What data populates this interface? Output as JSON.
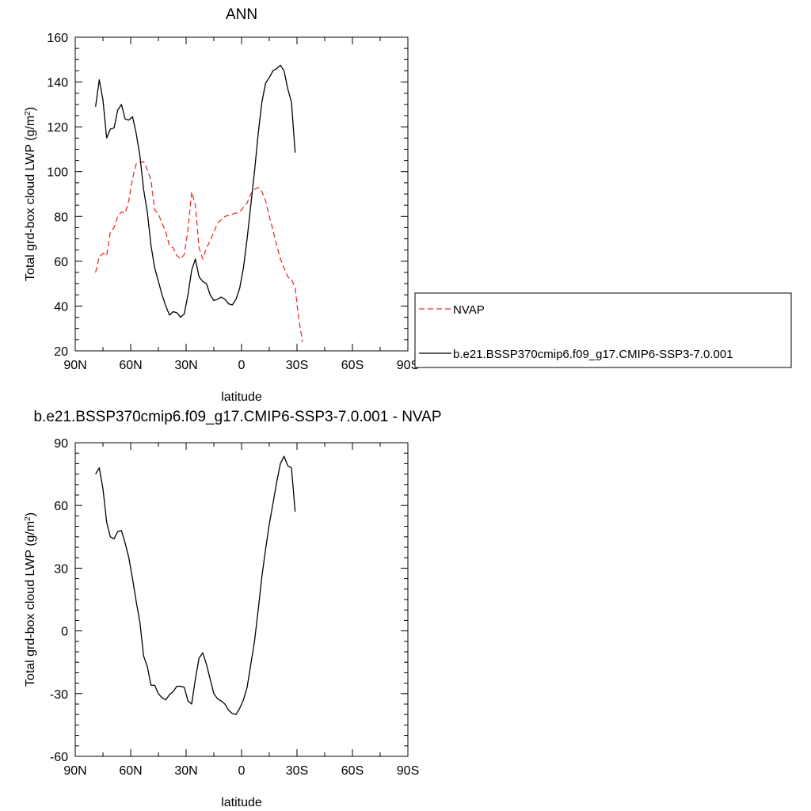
{
  "chart_data": [
    {
      "type": "line",
      "title": "ANN",
      "xlabel": "latitude",
      "ylabel": "Total grd-box cloud LWP (g/m",
      "ylabel_sup": "2",
      "ylabel_close": ")",
      "xlim": [
        90,
        -90
      ],
      "ylim": [
        20,
        160
      ],
      "xticks": [
        {
          "v": 90,
          "label": "90N"
        },
        {
          "v": 60,
          "label": "60N"
        },
        {
          "v": 30,
          "label": "30N"
        },
        {
          "v": 0,
          "label": "0"
        },
        {
          "v": -30,
          "label": "30S"
        },
        {
          "v": -60,
          "label": "60S"
        },
        {
          "v": -90,
          "label": "90S"
        }
      ],
      "yticks": [
        {
          "v": 20,
          "label": "20"
        },
        {
          "v": 40,
          "label": "40"
        },
        {
          "v": 60,
          "label": "60"
        },
        {
          "v": 80,
          "label": "80"
        },
        {
          "v": 100,
          "label": "100"
        },
        {
          "v": 120,
          "label": "120"
        },
        {
          "v": 140,
          "label": "140"
        },
        {
          "v": 160,
          "label": "160"
        }
      ],
      "legend": "right",
      "series": [
        {
          "name": "NVAP",
          "color": "#e8312f",
          "dash": true,
          "points": [
            [
              79,
              55
            ],
            [
              77,
              62
            ],
            [
              75,
              63.5
            ],
            [
              73,
              62.5
            ],
            [
              71,
              73
            ],
            [
              69,
              75
            ],
            [
              67,
              80
            ],
            [
              65,
              82
            ],
            [
              63,
              81.5
            ],
            [
              61,
              87
            ],
            [
              59,
              97
            ],
            [
              57,
              103.5
            ],
            [
              55,
              104
            ],
            [
              53,
              104.5
            ],
            [
              51,
              101
            ],
            [
              49,
              96
            ],
            [
              47,
              83
            ],
            [
              45,
              81
            ],
            [
              43,
              77
            ],
            [
              41,
              73
            ],
            [
              39,
              67
            ],
            [
              37,
              66
            ],
            [
              35,
              62.5
            ],
            [
              33,
              61
            ],
            [
              31,
              63
            ],
            [
              29,
              74
            ],
            [
              27,
              91
            ],
            [
              25,
              85
            ],
            [
              23,
              66
            ],
            [
              21,
              61
            ],
            [
              19,
              66
            ],
            [
              17,
              69
            ],
            [
              15,
              73
            ],
            [
              13,
              77
            ],
            [
              11,
              78.5
            ],
            [
              9,
              80
            ],
            [
              7,
              80.5
            ],
            [
              5,
              81
            ],
            [
              3,
              81.5
            ],
            [
              1,
              82
            ],
            [
              -1,
              84
            ],
            [
              -3,
              86
            ],
            [
              -5,
              90
            ],
            [
              -7,
              92
            ],
            [
              -9,
              93
            ],
            [
              -11,
              91
            ],
            [
              -13,
              87
            ],
            [
              -15,
              80
            ],
            [
              -17,
              74
            ],
            [
              -19,
              67
            ],
            [
              -21,
              61
            ],
            [
              -23,
              57
            ],
            [
              -25,
              53
            ],
            [
              -27,
              52
            ],
            [
              -29,
              48
            ],
            [
              -31,
              34
            ],
            [
              -33,
              24
            ]
          ]
        },
        {
          "name": "b.e21.BSSP370cmip6.f09_g17.CMIP6-SSP3-7.0.001",
          "color": "#000000",
          "dash": false,
          "points": [
            [
              79,
              129
            ],
            [
              77,
              141
            ],
            [
              75,
              132
            ],
            [
              73,
              115
            ],
            [
              71,
              119
            ],
            [
              69,
              119.5
            ],
            [
              67,
              127.5
            ],
            [
              65,
              130
            ],
            [
              63,
              123.5
            ],
            [
              61,
              123
            ],
            [
              59,
              124.5
            ],
            [
              57,
              117
            ],
            [
              55,
              107
            ],
            [
              53,
              92
            ],
            [
              51,
              82
            ],
            [
              49,
              67
            ],
            [
              47,
              57
            ],
            [
              45,
              51
            ],
            [
              43,
              45
            ],
            [
              41,
              40
            ],
            [
              39,
              36
            ],
            [
              37,
              37.5
            ],
            [
              35,
              37
            ],
            [
              33,
              35
            ],
            [
              31,
              36.5
            ],
            [
              29,
              45
            ],
            [
              27,
              56
            ],
            [
              25,
              61
            ],
            [
              23,
              53
            ],
            [
              21,
              51
            ],
            [
              19,
              50
            ],
            [
              17,
              45
            ],
            [
              15,
              42.5
            ],
            [
              13,
              43
            ],
            [
              11,
              44
            ],
            [
              9,
              43
            ],
            [
              7,
              41
            ],
            [
              5,
              40.5
            ],
            [
              3,
              43
            ],
            [
              1,
              48
            ],
            [
              -1,
              57
            ],
            [
              -3,
              70
            ],
            [
              -5,
              85
            ],
            [
              -7,
              100
            ],
            [
              -9,
              117
            ],
            [
              -11,
              131
            ],
            [
              -13,
              139.5
            ],
            [
              -15,
              142
            ],
            [
              -17,
              145
            ],
            [
              -19,
              146
            ],
            [
              -21,
              147.5
            ],
            [
              -23,
              145
            ],
            [
              -25,
              137
            ],
            [
              -27,
              131
            ],
            [
              -29,
              108.5
            ]
          ]
        }
      ]
    },
    {
      "type": "line",
      "title": "b.e21.BSSP370cmip6.f09_g17.CMIP6-SSP3-7.0.001 - NVAP",
      "xlabel": "latitude",
      "ylabel": "Total grd-box cloud LWP (g/m",
      "ylabel_sup": "2",
      "ylabel_close": ")",
      "xlim": [
        90,
        -90
      ],
      "ylim": [
        -60,
        90
      ],
      "xticks": [
        {
          "v": 90,
          "label": "90N"
        },
        {
          "v": 60,
          "label": "60N"
        },
        {
          "v": 30,
          "label": "30N"
        },
        {
          "v": 0,
          "label": "0"
        },
        {
          "v": -30,
          "label": "30S"
        },
        {
          "v": -60,
          "label": "60S"
        },
        {
          "v": -90,
          "label": "90S"
        }
      ],
      "yticks": [
        {
          "v": -60,
          "label": "-60"
        },
        {
          "v": -30,
          "label": "-30"
        },
        {
          "v": 0,
          "label": "0"
        },
        {
          "v": 30,
          "label": "30"
        },
        {
          "v": 60,
          "label": "60"
        },
        {
          "v": 90,
          "label": "90"
        }
      ],
      "series": [
        {
          "color": "#000000",
          "dash": false,
          "points": [
            [
              79,
              75
            ],
            [
              77,
              78
            ],
            [
              75,
              68
            ],
            [
              73,
              52
            ],
            [
              71,
              45
            ],
            [
              69,
              44
            ],
            [
              67,
              47.5
            ],
            [
              65,
              48
            ],
            [
              63,
              42
            ],
            [
              61,
              35
            ],
            [
              59,
              25
            ],
            [
              57,
              14
            ],
            [
              55,
              4
            ],
            [
              53,
              -12
            ],
            [
              51,
              -17
            ],
            [
              49,
              -26
            ],
            [
              47,
              -26
            ],
            [
              45,
              -30
            ],
            [
              43,
              -32
            ],
            [
              41,
              -33
            ],
            [
              39,
              -30.5
            ],
            [
              37,
              -29
            ],
            [
              35,
              -26.5
            ],
            [
              33,
              -26.5
            ],
            [
              31,
              -27
            ],
            [
              29,
              -33.5
            ],
            [
              27,
              -35
            ],
            [
              25,
              -23
            ],
            [
              23,
              -13
            ],
            [
              21,
              -10.5
            ],
            [
              19,
              -16
            ],
            [
              17,
              -23
            ],
            [
              15,
              -30
            ],
            [
              13,
              -32.5
            ],
            [
              11,
              -33.5
            ],
            [
              9,
              -35
            ],
            [
              7,
              -38
            ],
            [
              5,
              -39.5
            ],
            [
              3,
              -40
            ],
            [
              1,
              -37
            ],
            [
              -1,
              -33
            ],
            [
              -3,
              -27
            ],
            [
              -5,
              -16
            ],
            [
              -7,
              -5
            ],
            [
              -9,
              10
            ],
            [
              -11,
              26
            ],
            [
              -13,
              39
            ],
            [
              -15,
              51
            ],
            [
              -17,
              61
            ],
            [
              -19,
              71
            ],
            [
              -21,
              80
            ],
            [
              -23,
              83.5
            ],
            [
              -25,
              79
            ],
            [
              -27,
              78
            ],
            [
              -29,
              57
            ]
          ]
        }
      ]
    }
  ]
}
